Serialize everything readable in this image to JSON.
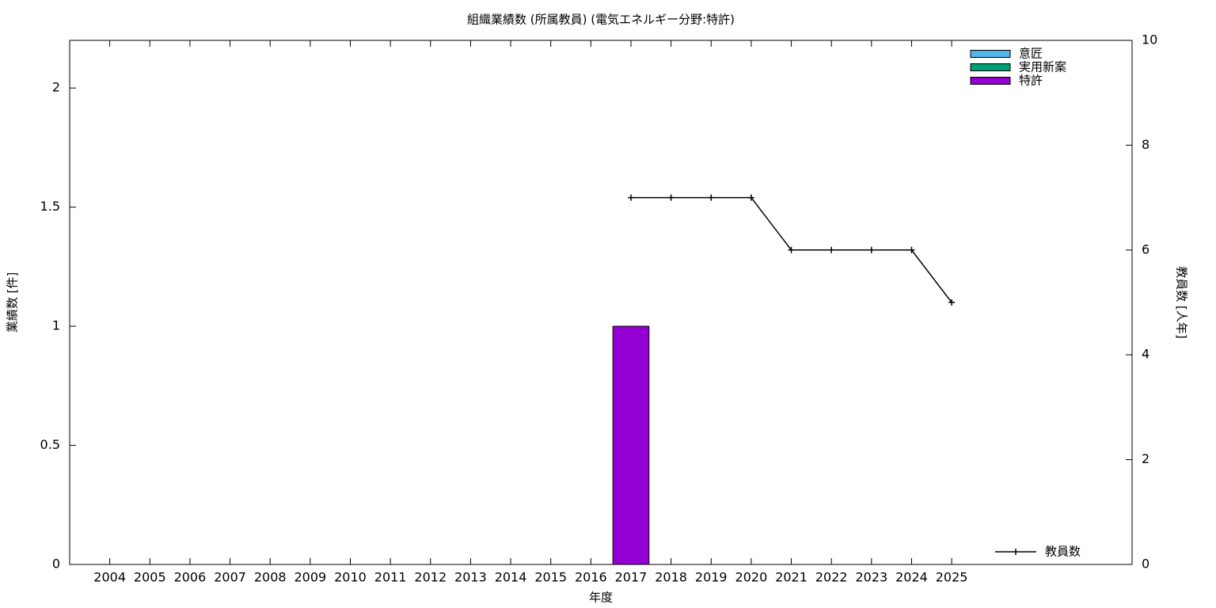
{
  "chart_data": {
    "type": "bar",
    "title": "組織業績数 (所属教員) (電気エネルギー分野:特許)",
    "x_label": "年度",
    "y_label": "業績数 [件]",
    "y2_label": "教員数 [人年]",
    "categories": [
      "2004",
      "2005",
      "2006",
      "2007",
      "2008",
      "2009",
      "2010",
      "2011",
      "2012",
      "2013",
      "2014",
      "2015",
      "2016",
      "2017",
      "2018",
      "2019",
      "2020",
      "2021",
      "2022",
      "2023",
      "2024",
      "2025"
    ],
    "stacked": true,
    "series": [
      {
        "name": "意匠",
        "color": "#56b4e9",
        "values": [
          0,
          0,
          0,
          0,
          0,
          0,
          0,
          0,
          0,
          0,
          0,
          0,
          0,
          0,
          0,
          0,
          0,
          0,
          0,
          0,
          0,
          0
        ]
      },
      {
        "name": "実用新案",
        "color": "#009e73",
        "values": [
          0,
          0,
          0,
          0,
          0,
          0,
          0,
          0,
          0,
          0,
          0,
          0,
          0,
          0,
          0,
          0,
          0,
          0,
          0,
          0,
          0,
          0
        ]
      },
      {
        "name": "特許",
        "color": "#9400d3",
        "values": [
          0,
          0,
          0,
          0,
          0,
          0,
          0,
          0,
          0,
          0,
          0,
          0,
          0,
          1,
          0,
          0,
          0,
          0,
          0,
          0,
          0,
          0
        ]
      },
      {
        "name": "教員数",
        "type": "line",
        "axis": "y2",
        "color": "#000000",
        "values": [
          null,
          null,
          null,
          null,
          null,
          null,
          null,
          null,
          null,
          null,
          null,
          null,
          null,
          7,
          7,
          7,
          7,
          6,
          6,
          6,
          6,
          5
        ]
      }
    ],
    "ylim": [
      0,
      2.2
    ],
    "yticks": [
      0,
      0.5,
      1,
      1.5,
      2
    ],
    "y2lim": [
      0,
      10
    ],
    "y2ticks": [
      0,
      2,
      4,
      6,
      8,
      10
    ],
    "legend": "top-right",
    "line_legend": "bottom-right",
    "grid": false
  }
}
